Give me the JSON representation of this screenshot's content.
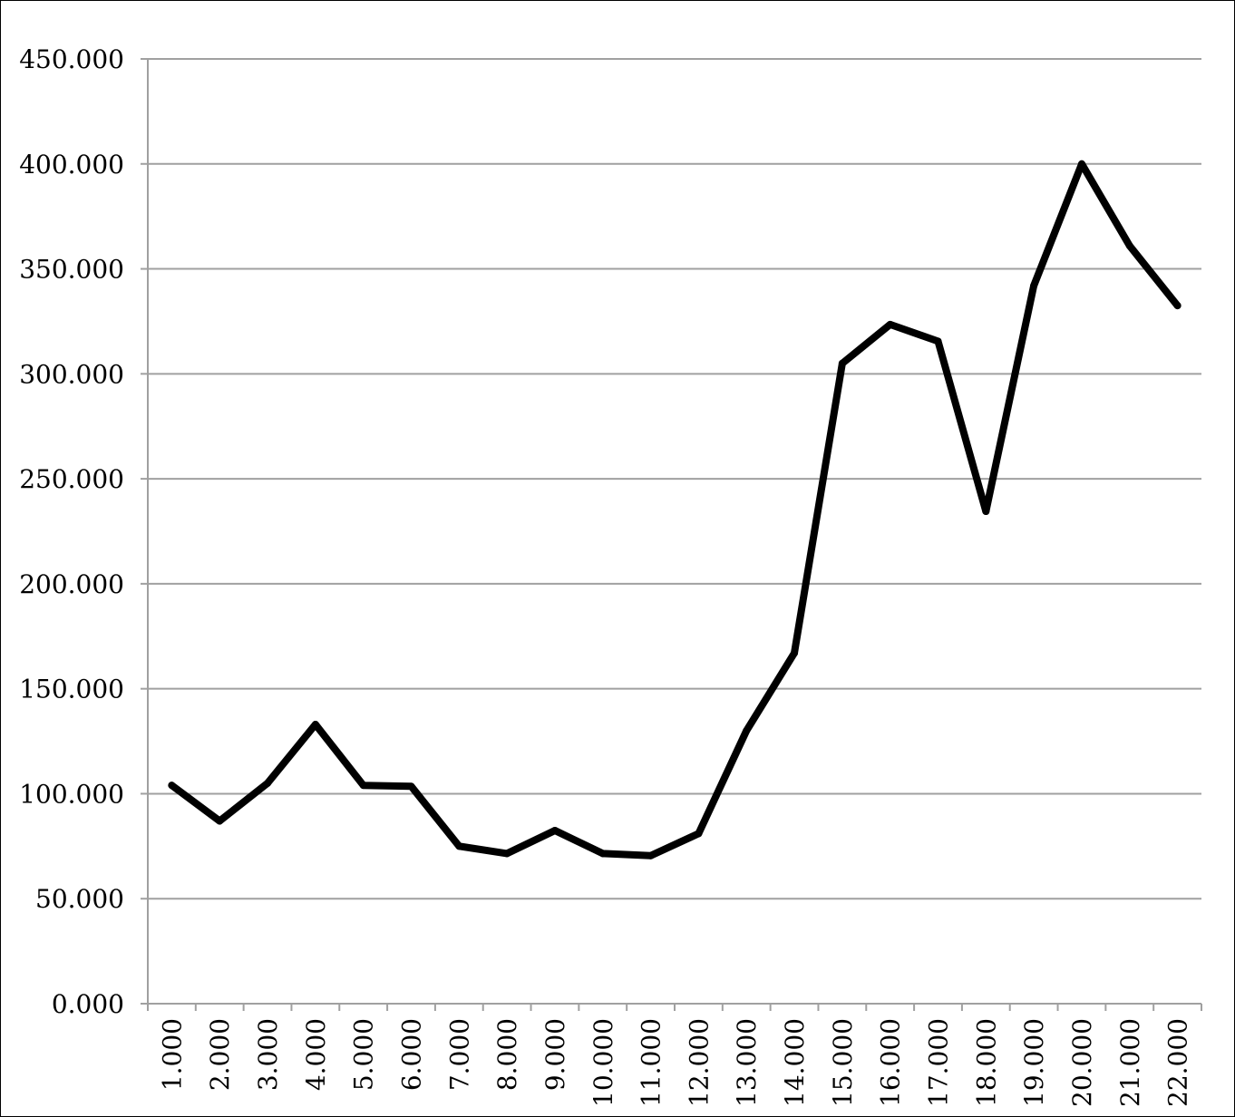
{
  "chart_data": {
    "type": "line",
    "title": "",
    "xlabel": "",
    "ylabel": "",
    "categories": [
      "1.000",
      "2.000",
      "3.000",
      "4.000",
      "5.000",
      "6.000",
      "7.000",
      "8.000",
      "9.000",
      "10.000",
      "11.000",
      "12.000",
      "13.000",
      "14.000",
      "15.000",
      "16.000",
      "17.000",
      "18.000",
      "19.000",
      "20.000",
      "21.000",
      "22.000"
    ],
    "series": [
      {
        "values": [
          104,
          87,
          105,
          133,
          104,
          103.5,
          75,
          71.5,
          82.5,
          71.5,
          70.5,
          81,
          130,
          167,
          305,
          323.5,
          315.5,
          234.5,
          342,
          400,
          361,
          332.5
        ]
      }
    ],
    "ylim": [
      0,
      450
    ],
    "yticks": [
      {
        "value": 0,
        "label": "0.000"
      },
      {
        "value": 50,
        "label": "50.000"
      },
      {
        "value": 100,
        "label": "100.000"
      },
      {
        "value": 150,
        "label": "150.000"
      },
      {
        "value": 200,
        "label": "200.000"
      },
      {
        "value": 250,
        "label": "250.000"
      },
      {
        "value": 300,
        "label": "300.000"
      },
      {
        "value": 350,
        "label": "350.000"
      },
      {
        "value": 400,
        "label": "400.000"
      },
      {
        "value": 450,
        "label": "450.000"
      }
    ],
    "grid": true,
    "legend": "none",
    "colors": {
      "line": "#000000",
      "grid": "#a0a0a0",
      "axis": "#a0a0a0",
      "background": "#ffffff"
    }
  }
}
